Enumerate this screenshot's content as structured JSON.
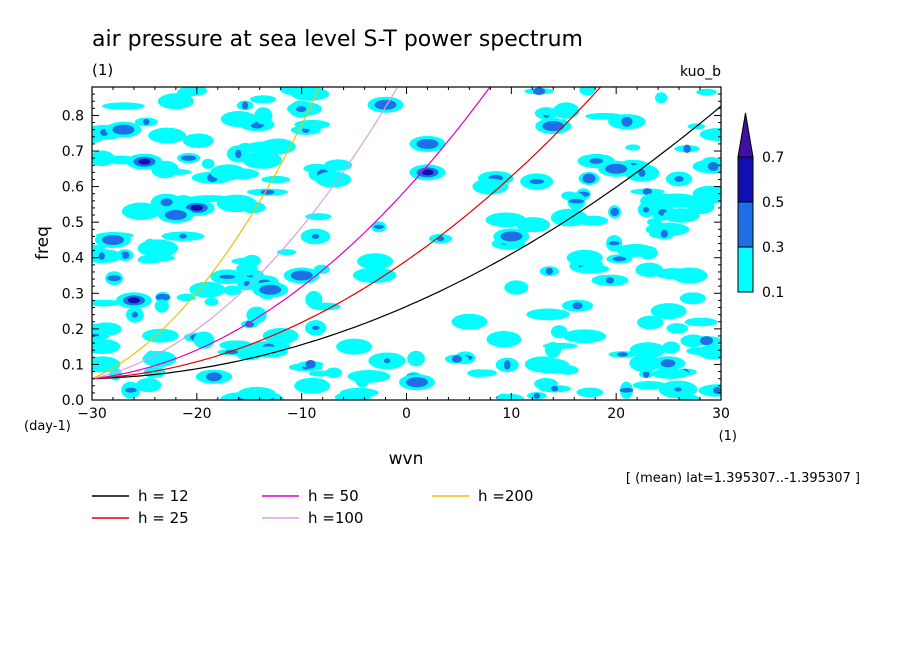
{
  "chart_data": {
    "type": "contour",
    "title": "air pressure at sea level S-T power spectrum",
    "title_units": "(1)",
    "top_right_label": "kuo_b",
    "ylabel": "freq",
    "y_units": "(day-1)",
    "xlabel": "wvn",
    "x_units": "(1)",
    "xlim": [
      -30,
      30
    ],
    "ylim": [
      0,
      0.88
    ],
    "x_ticks": [
      -30,
      -20,
      -10,
      0,
      10,
      20,
      30
    ],
    "x_tick_labels": [
      "−30",
      "−20",
      "−10",
      "0",
      "10",
      "20",
      "30"
    ],
    "y_ticks": [
      0,
      0.1,
      0.2,
      0.3,
      0.4,
      0.5,
      0.6,
      0.7,
      0.8
    ],
    "y_tick_labels": [
      "0.0",
      "0.1",
      "0.2",
      "0.3",
      "0.4",
      "0.5",
      "0.6",
      "0.7",
      "0.8"
    ],
    "note": "[ (mean) lat=1.395307..-1.395307 ]",
    "colorbar": {
      "levels": [
        "0.1",
        "0.3",
        "0.5",
        "0.7"
      ],
      "colors": [
        "#00ffff",
        "#1e6ee6",
        "#1010b0",
        "#4010a0"
      ]
    },
    "contour_blobs": [
      {
        "x": -27,
        "y": 0.76,
        "level": 2
      },
      {
        "x": -25,
        "y": 0.67,
        "level": 3
      },
      {
        "x": -20,
        "y": 0.54,
        "level": 3
      },
      {
        "x": -22,
        "y": 0.52,
        "level": 2
      },
      {
        "x": -28,
        "y": 0.45,
        "level": 2
      },
      {
        "x": -26,
        "y": 0.28,
        "level": 3
      },
      {
        "x": -19,
        "y": 0.31,
        "level": 1
      },
      {
        "x": -10,
        "y": 0.35,
        "level": 2
      },
      {
        "x": -13,
        "y": 0.31,
        "level": 2
      },
      {
        "x": 2,
        "y": 0.64,
        "level": 3
      },
      {
        "x": 2,
        "y": 0.72,
        "level": 2
      },
      {
        "x": 10,
        "y": 0.46,
        "level": 2
      },
      {
        "x": 20,
        "y": 0.65,
        "level": 2
      },
      {
        "x": 27,
        "y": 0.35,
        "level": 1
      },
      {
        "x": 23,
        "y": 0.14,
        "level": 1
      },
      {
        "x": -22,
        "y": 0.84,
        "level": 1
      },
      {
        "x": -16,
        "y": 0.79,
        "level": 1
      },
      {
        "x": -2,
        "y": 0.83,
        "level": 2
      },
      {
        "x": 14,
        "y": 0.77,
        "level": 2
      },
      {
        "x": 25,
        "y": 0.25,
        "level": 1
      },
      {
        "x": -7,
        "y": 0.62,
        "level": 1
      },
      {
        "x": 6,
        "y": 0.22,
        "level": 1
      },
      {
        "x": -3,
        "y": 0.39,
        "level": 1
      },
      {
        "x": 17,
        "y": 0.4,
        "level": 1
      },
      {
        "x": 29,
        "y": 0.58,
        "level": 1
      },
      {
        "x": -29,
        "y": 0.1,
        "level": 1
      },
      {
        "x": -9,
        "y": 0.04,
        "level": 1
      },
      {
        "x": 1,
        "y": 0.05,
        "level": 2
      },
      {
        "x": 13,
        "y": 0.1,
        "level": 1
      },
      {
        "x": 24,
        "y": 0.56,
        "level": 1
      },
      {
        "x": -17,
        "y": 0.64,
        "level": 1
      },
      {
        "x": -12,
        "y": 0.18,
        "level": 1
      },
      {
        "x": 8,
        "y": 0.6,
        "level": 1
      },
      {
        "x": -5,
        "y": 0.15,
        "level": 1
      }
    ],
    "series": [
      {
        "name": "h = 12",
        "h": 12,
        "color": "#000000"
      },
      {
        "name": "h = 25",
        "h": 25,
        "color": "#e00000"
      },
      {
        "name": "h = 50",
        "h": 50,
        "color": "#e000c0"
      },
      {
        "name": "h =100",
        "h": 100,
        "color": "#d8a0e0"
      },
      {
        "name": "h =200",
        "h": 200,
        "color": "#f0c000"
      }
    ]
  }
}
